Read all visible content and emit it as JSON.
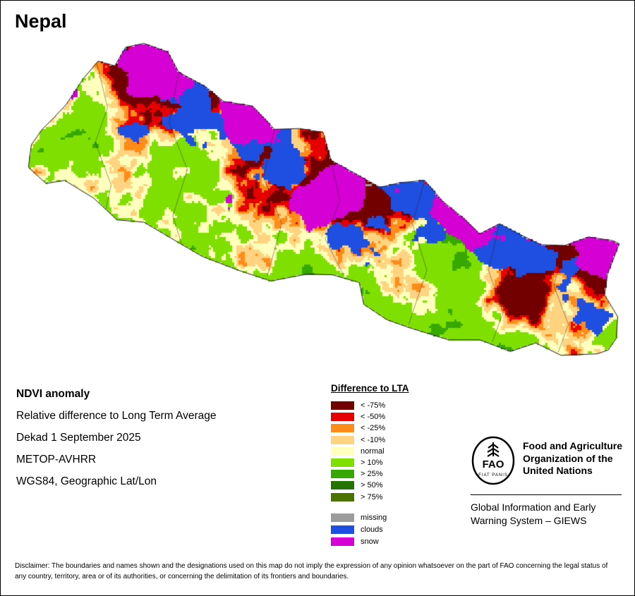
{
  "page": {
    "title": "Nepal",
    "background_color": "#ffffff",
    "frame_border_color": "#000000"
  },
  "map": {
    "outline_color": "#1a1a1a",
    "admin_line_color": "rgba(30,30,30,0.55)"
  },
  "info": {
    "product": "NDVI anomaly",
    "description": "Relative difference to Long Term Average",
    "dekad": "Dekad 1 September 2025",
    "sensor": "METOP-AVHRR",
    "projection": "WGS84, Geographic Lat/Lon"
  },
  "legend": {
    "title": "Difference to LTA",
    "classes": [
      {
        "label": "< -75%",
        "color": "#730000"
      },
      {
        "label": "< -50%",
        "color": "#e60000"
      },
      {
        "label": "< -25%",
        "color": "#ff8c19"
      },
      {
        "label": "< -10%",
        "color": "#ffd37f"
      },
      {
        "label": "normal",
        "color": "#ffffbe"
      },
      {
        "label": "> 10%",
        "color": "#7fe000"
      },
      {
        "label": "> 25%",
        "color": "#37a800"
      },
      {
        "label": "> 50%",
        "color": "#267300"
      },
      {
        "label": "> 75%",
        "color": "#4c7300"
      }
    ],
    "extra": [
      {
        "label": "missing",
        "color": "#9c9c9c"
      },
      {
        "label": "clouds",
        "color": "#1f4fe0"
      },
      {
        "label": "snow",
        "color": "#d400d4"
      }
    ]
  },
  "footer": {
    "logo_text": "FAO",
    "logo_motto": "FIAT PANIS",
    "org_lines": [
      "Food and Agriculture",
      "Organization of the",
      "United Nations"
    ],
    "giews_lines": [
      "Global Information and Early",
      "Warning System – GIEWS"
    ],
    "disclaimer": "Disclaimer: The boundaries and names shown and the designations used on this map do not imply the expression of any opinion whatsoever on the part of FAO concerning the legal status of any country, territory, area or of its authorities, or concerning the delimitation of its frontiers and boundaries."
  }
}
